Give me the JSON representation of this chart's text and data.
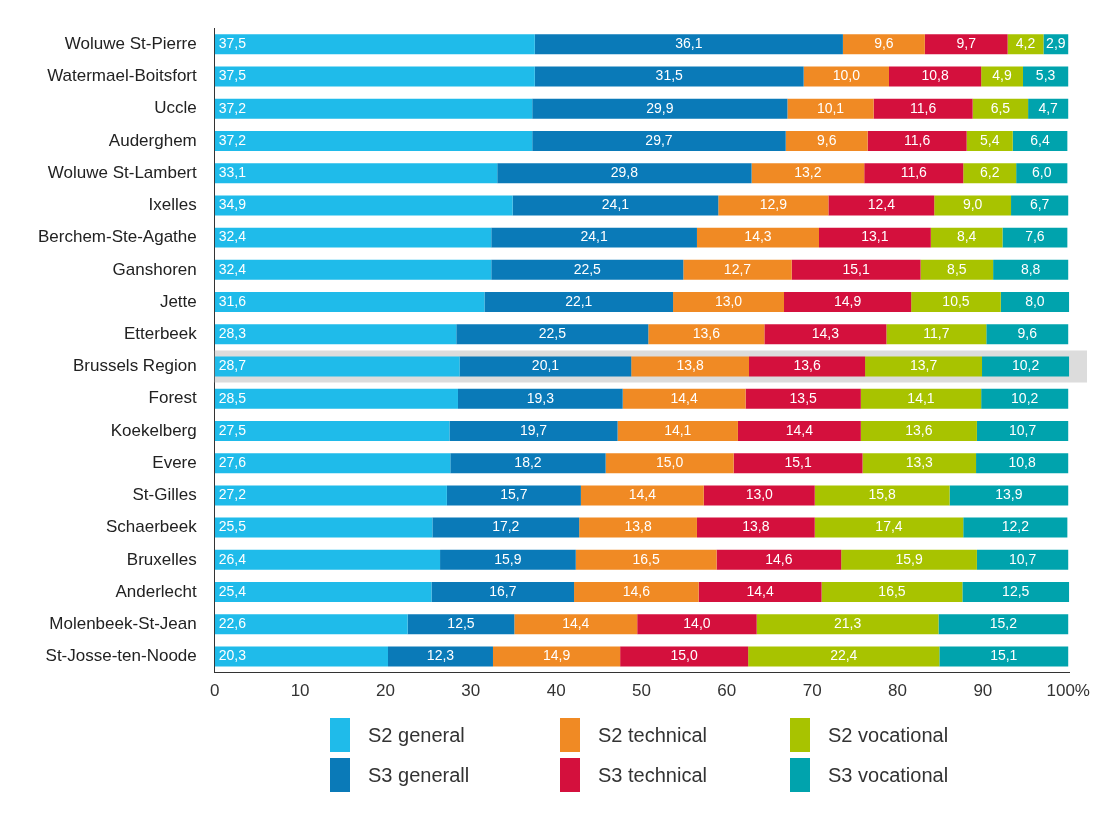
{
  "chart_data": {
    "type": "bar",
    "orientation": "horizontal",
    "stacked": true,
    "legend": "bottom",
    "grid": false,
    "categories": [
      "Woluwe St-Pierre",
      "Watermael-Boitsfort",
      "Uccle",
      "Auderghem",
      "Woluwe St-Lambert",
      "Ixelles",
      "Berchem-Ste-Agathe",
      "Ganshoren",
      "Jette",
      "Etterbeek",
      "Brussels Region",
      "Forest",
      "Koekelberg",
      "Evere",
      "St-Gilles",
      "Schaerbeek",
      "Bruxelles",
      "Anderlecht",
      "Molenbeek-St-Jean",
      "St-Josse-ten-Noode"
    ],
    "xlim": [
      0,
      100.2
    ],
    "xticks": [
      0,
      10,
      20,
      30,
      40,
      50,
      60,
      70,
      80,
      90,
      {
        "value": 100,
        "label": "100%"
      }
    ],
    "bands": [
      {
        "axis": "y",
        "from": "Brussels Region",
        "to": "Brussels Region",
        "color": "#dcdcdc"
      }
    ],
    "series": [
      {
        "name": "S2 general",
        "color": "#1fbbea",
        "values": [
          37.5,
          37.5,
          37.2,
          37.2,
          33.1,
          34.9,
          32.4,
          32.4,
          31.6,
          28.3,
          28.7,
          28.5,
          27.5,
          27.6,
          27.2,
          25.5,
          26.4,
          25.4,
          22.6,
          20.3
        ],
        "value_labels": [
          "37,5",
          "37,5",
          "37,2",
          "37,2",
          "33,1",
          "34,9",
          "32,4",
          "32,4",
          "31,6",
          "28,3",
          "28,7",
          "28,5",
          "27,5",
          "27,6",
          "27,2",
          "25,5",
          "26,4",
          "25,4",
          "22,6",
          "20,3"
        ]
      },
      {
        "name": "S3 generall",
        "color": "#0a7ab8",
        "values": [
          36.1,
          31.5,
          29.9,
          29.7,
          29.8,
          24.1,
          24.1,
          22.5,
          22.1,
          22.5,
          20.1,
          19.3,
          19.7,
          18.2,
          15.7,
          17.2,
          15.9,
          16.7,
          12.5,
          12.3
        ],
        "value_labels": [
          "36,1",
          "31,5",
          "29,9",
          "29,7",
          "29,8",
          "24,1",
          "24,1",
          "22,5",
          "22,1",
          "22,5",
          "20,1",
          "19,3",
          "19,7",
          "18,2",
          "15,7",
          "17,2",
          "15,9",
          "16,7",
          "12,5",
          "12,3"
        ]
      },
      {
        "name": "S2 technical",
        "color": "#f08a24",
        "values": [
          9.6,
          10.0,
          10.1,
          9.6,
          13.2,
          12.9,
          14.3,
          12.7,
          13.0,
          13.6,
          13.8,
          14.4,
          14.1,
          15.0,
          14.4,
          13.8,
          16.5,
          14.6,
          14.4,
          14.9
        ],
        "value_labels": [
          "9,6",
          "10,0",
          "10,1",
          "9,6",
          "13,2",
          "12,9",
          "14,3",
          "12,7",
          "13,0",
          "13,6",
          "13,8",
          "14,4",
          "14,1",
          "15,0",
          "14,4",
          "13,8",
          "16,5",
          "14,6",
          "14,4",
          "14,9"
        ]
      },
      {
        "name": "S3 technical",
        "color": "#d4103d",
        "values": [
          9.7,
          10.8,
          11.6,
          11.6,
          11.6,
          12.4,
          13.1,
          15.1,
          14.9,
          14.3,
          13.6,
          13.5,
          14.4,
          15.1,
          13.0,
          13.8,
          14.6,
          14.4,
          14.0,
          15.0
        ],
        "value_labels": [
          "9,7",
          "10,8",
          "11,6",
          "11,6",
          "11,6",
          "12,4",
          "13,1",
          "15,1",
          "14,9",
          "14,3",
          "13,6",
          "13,5",
          "14,4",
          "15,1",
          "13,0",
          "13,8",
          "14,6",
          "14,4",
          "14,0",
          "15,0"
        ]
      },
      {
        "name": "S2 vocational",
        "color": "#a8c300",
        "values": [
          4.2,
          4.9,
          6.5,
          5.4,
          6.2,
          9.0,
          8.4,
          8.5,
          10.5,
          11.7,
          13.7,
          14.1,
          13.6,
          13.3,
          15.8,
          17.4,
          15.9,
          16.5,
          21.3,
          22.4
        ],
        "value_labels": [
          "4,2",
          "4,9",
          "6,5",
          "5,4",
          "6,2",
          "9,0",
          "8,4",
          "8,5",
          "10,5",
          "11,7",
          "13,7",
          "14,1",
          "13,6",
          "13,3",
          "15,8",
          "17,4",
          "15,9",
          "16,5",
          "21,3",
          "22,4"
        ]
      },
      {
        "name": "S3 vocational",
        "color": "#00a3ad",
        "values": [
          2.9,
          5.3,
          4.7,
          6.4,
          6.0,
          6.7,
          7.6,
          8.8,
          8.0,
          9.6,
          10.2,
          10.2,
          10.7,
          10.8,
          13.9,
          12.2,
          10.7,
          12.5,
          15.2,
          15.1
        ],
        "value_labels": [
          "2,9",
          "5,3",
          "4,7",
          "6,4",
          "6,0",
          "6,7",
          "7,6",
          "8,8",
          "8,0",
          "9,6",
          "10,2",
          "10,2",
          "10,7",
          "10,8",
          "13,9",
          "12,2",
          "10,7",
          "12,5",
          "15,2",
          "15,1"
        ]
      }
    ]
  }
}
